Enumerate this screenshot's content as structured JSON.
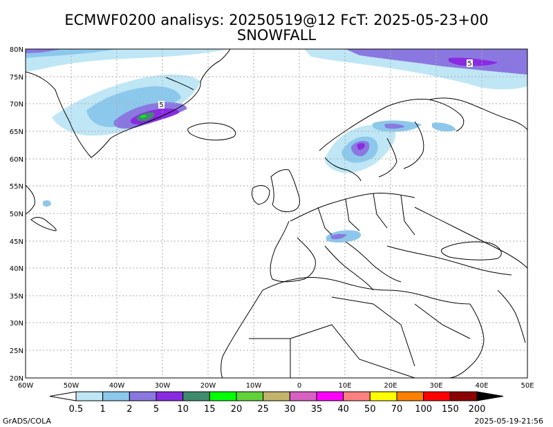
{
  "title": {
    "line1": "ECMWF0200 analisys: 20250519@12 FcT: 2025-05-23+00",
    "line2": "SNOWFALL"
  },
  "axes": {
    "lat_labels": [
      "80N",
      "75N",
      "70N",
      "65N",
      "60N",
      "55N",
      "50N",
      "45N",
      "40N",
      "35N",
      "30N",
      "25N",
      "20N"
    ],
    "lon_labels": [
      "60W",
      "50W",
      "40W",
      "30W",
      "20W",
      "10W",
      "0",
      "10E",
      "20E",
      "30E",
      "40E",
      "50E"
    ],
    "grid": true,
    "grid_style": "dotted"
  },
  "contour_labels": [
    "5",
    "5"
  ],
  "colorbar": {
    "ticks": [
      "0.5",
      "1",
      "2",
      "5",
      "10",
      "15",
      "20",
      "25",
      "30",
      "35",
      "40",
      "50",
      "70",
      "100",
      "150",
      "200"
    ],
    "colors": [
      "#ffffff",
      "#bfe6f5",
      "#8cc8ec",
      "#8a78e0",
      "#8a2be2",
      "#3e8c6e",
      "#00ff00",
      "#5fd13a",
      "#c2b46a",
      "#d760c2",
      "#ff00ff",
      "#ff8080",
      "#ffff00",
      "#ff8000",
      "#ff0000",
      "#8b0000",
      "#000000"
    ]
  },
  "footer": {
    "left": "GrADS/COLA",
    "right": "2025-05-19-21:56"
  }
}
